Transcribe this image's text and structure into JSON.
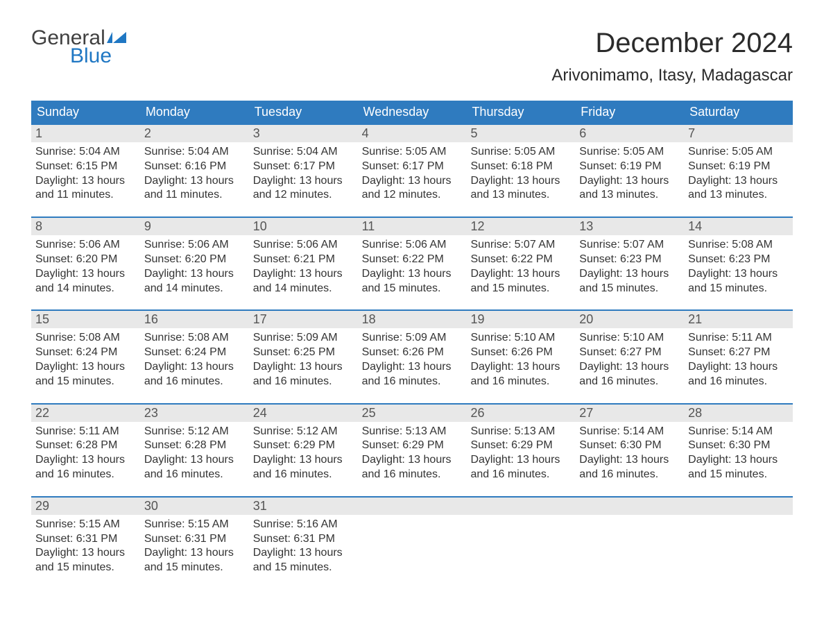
{
  "logo": {
    "word1": "General",
    "word2": "Blue"
  },
  "title": "December 2024",
  "location": "Arivonimamo, Itasy, Madagascar",
  "colors": {
    "header_bg": "#2f7bbf",
    "header_text": "#ffffff",
    "row_border": "#2f7bbf",
    "daynum_bg": "#e8e8e8",
    "daynum_text": "#555555",
    "body_text": "#333333",
    "logo_gray": "#404040",
    "logo_blue": "#1f77c3",
    "page_bg": "#ffffff"
  },
  "typography": {
    "title_fontsize": 40,
    "location_fontsize": 24,
    "dow_fontsize": 18,
    "daynum_fontsize": 18,
    "body_fontsize": 16
  },
  "labels": {
    "sunrise": "Sunrise:",
    "sunset": "Sunset:",
    "daylight": "Daylight:"
  },
  "days_of_week": [
    "Sunday",
    "Monday",
    "Tuesday",
    "Wednesday",
    "Thursday",
    "Friday",
    "Saturday"
  ],
  "weeks": [
    [
      {
        "n": "1",
        "sunrise": "5:04 AM",
        "sunset": "6:15 PM",
        "dl1": "13 hours",
        "dl2": "and 11 minutes."
      },
      {
        "n": "2",
        "sunrise": "5:04 AM",
        "sunset": "6:16 PM",
        "dl1": "13 hours",
        "dl2": "and 11 minutes."
      },
      {
        "n": "3",
        "sunrise": "5:04 AM",
        "sunset": "6:17 PM",
        "dl1": "13 hours",
        "dl2": "and 12 minutes."
      },
      {
        "n": "4",
        "sunrise": "5:05 AM",
        "sunset": "6:17 PM",
        "dl1": "13 hours",
        "dl2": "and 12 minutes."
      },
      {
        "n": "5",
        "sunrise": "5:05 AM",
        "sunset": "6:18 PM",
        "dl1": "13 hours",
        "dl2": "and 13 minutes."
      },
      {
        "n": "6",
        "sunrise": "5:05 AM",
        "sunset": "6:19 PM",
        "dl1": "13 hours",
        "dl2": "and 13 minutes."
      },
      {
        "n": "7",
        "sunrise": "5:05 AM",
        "sunset": "6:19 PM",
        "dl1": "13 hours",
        "dl2": "and 13 minutes."
      }
    ],
    [
      {
        "n": "8",
        "sunrise": "5:06 AM",
        "sunset": "6:20 PM",
        "dl1": "13 hours",
        "dl2": "and 14 minutes."
      },
      {
        "n": "9",
        "sunrise": "5:06 AM",
        "sunset": "6:20 PM",
        "dl1": "13 hours",
        "dl2": "and 14 minutes."
      },
      {
        "n": "10",
        "sunrise": "5:06 AM",
        "sunset": "6:21 PM",
        "dl1": "13 hours",
        "dl2": "and 14 minutes."
      },
      {
        "n": "11",
        "sunrise": "5:06 AM",
        "sunset": "6:22 PM",
        "dl1": "13 hours",
        "dl2": "and 15 minutes."
      },
      {
        "n": "12",
        "sunrise": "5:07 AM",
        "sunset": "6:22 PM",
        "dl1": "13 hours",
        "dl2": "and 15 minutes."
      },
      {
        "n": "13",
        "sunrise": "5:07 AM",
        "sunset": "6:23 PM",
        "dl1": "13 hours",
        "dl2": "and 15 minutes."
      },
      {
        "n": "14",
        "sunrise": "5:08 AM",
        "sunset": "6:23 PM",
        "dl1": "13 hours",
        "dl2": "and 15 minutes."
      }
    ],
    [
      {
        "n": "15",
        "sunrise": "5:08 AM",
        "sunset": "6:24 PM",
        "dl1": "13 hours",
        "dl2": "and 15 minutes."
      },
      {
        "n": "16",
        "sunrise": "5:08 AM",
        "sunset": "6:24 PM",
        "dl1": "13 hours",
        "dl2": "and 16 minutes."
      },
      {
        "n": "17",
        "sunrise": "5:09 AM",
        "sunset": "6:25 PM",
        "dl1": "13 hours",
        "dl2": "and 16 minutes."
      },
      {
        "n": "18",
        "sunrise": "5:09 AM",
        "sunset": "6:26 PM",
        "dl1": "13 hours",
        "dl2": "and 16 minutes."
      },
      {
        "n": "19",
        "sunrise": "5:10 AM",
        "sunset": "6:26 PM",
        "dl1": "13 hours",
        "dl2": "and 16 minutes."
      },
      {
        "n": "20",
        "sunrise": "5:10 AM",
        "sunset": "6:27 PM",
        "dl1": "13 hours",
        "dl2": "and 16 minutes."
      },
      {
        "n": "21",
        "sunrise": "5:11 AM",
        "sunset": "6:27 PM",
        "dl1": "13 hours",
        "dl2": "and 16 minutes."
      }
    ],
    [
      {
        "n": "22",
        "sunrise": "5:11 AM",
        "sunset": "6:28 PM",
        "dl1": "13 hours",
        "dl2": "and 16 minutes."
      },
      {
        "n": "23",
        "sunrise": "5:12 AM",
        "sunset": "6:28 PM",
        "dl1": "13 hours",
        "dl2": "and 16 minutes."
      },
      {
        "n": "24",
        "sunrise": "5:12 AM",
        "sunset": "6:29 PM",
        "dl1": "13 hours",
        "dl2": "and 16 minutes."
      },
      {
        "n": "25",
        "sunrise": "5:13 AM",
        "sunset": "6:29 PM",
        "dl1": "13 hours",
        "dl2": "and 16 minutes."
      },
      {
        "n": "26",
        "sunrise": "5:13 AM",
        "sunset": "6:29 PM",
        "dl1": "13 hours",
        "dl2": "and 16 minutes."
      },
      {
        "n": "27",
        "sunrise": "5:14 AM",
        "sunset": "6:30 PM",
        "dl1": "13 hours",
        "dl2": "and 16 minutes."
      },
      {
        "n": "28",
        "sunrise": "5:14 AM",
        "sunset": "6:30 PM",
        "dl1": "13 hours",
        "dl2": "and 15 minutes."
      }
    ],
    [
      {
        "n": "29",
        "sunrise": "5:15 AM",
        "sunset": "6:31 PM",
        "dl1": "13 hours",
        "dl2": "and 15 minutes."
      },
      {
        "n": "30",
        "sunrise": "5:15 AM",
        "sunset": "6:31 PM",
        "dl1": "13 hours",
        "dl2": "and 15 minutes."
      },
      {
        "n": "31",
        "sunrise": "5:16 AM",
        "sunset": "6:31 PM",
        "dl1": "13 hours",
        "dl2": "and 15 minutes."
      },
      {
        "empty": true
      },
      {
        "empty": true
      },
      {
        "empty": true
      },
      {
        "empty": true
      }
    ]
  ]
}
